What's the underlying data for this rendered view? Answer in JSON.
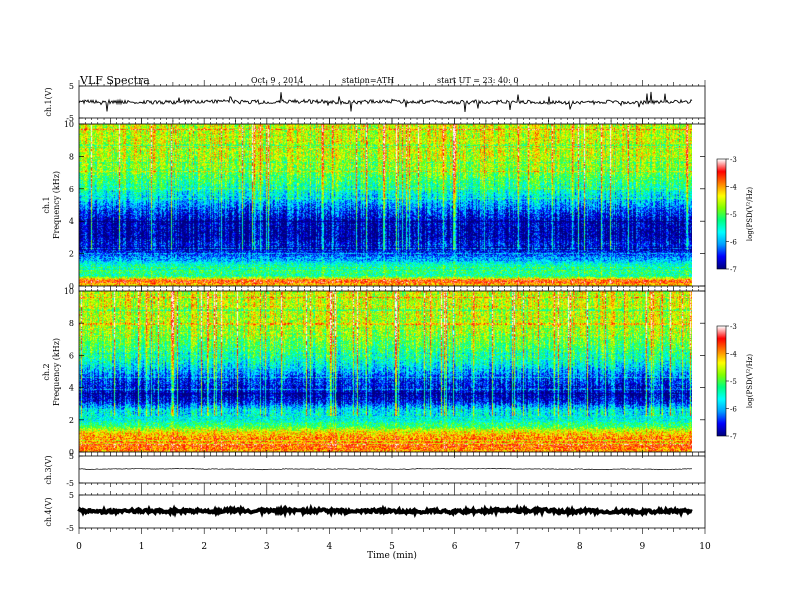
{
  "header": {
    "title": "VLF  Spectra",
    "date": "Oct. 9  , 2014",
    "station": "station=ATH",
    "start": "start  UT  =   23: 40: 0"
  },
  "x_axis": {
    "label": "Time  (min)",
    "ticks": [
      "0",
      "1",
      "2",
      "3",
      "4",
      "5",
      "6",
      "7",
      "8",
      "9",
      "10"
    ],
    "range": [
      0,
      10
    ],
    "data_end": 9.8
  },
  "panels": {
    "ch1_wave": {
      "ylabel": "ch.1(V)",
      "ticks": [
        "5",
        "-5"
      ],
      "ylim": [
        -5,
        5
      ]
    },
    "ch1_spec": {
      "ylabel_ch": "ch.1",
      "ylabel": "Frequency  (kHz)",
      "ticks": [
        "10",
        "8",
        "6",
        "4",
        "2",
        "0"
      ],
      "ylim": [
        0,
        10
      ]
    },
    "ch2_spec": {
      "ylabel_ch": "ch.2",
      "ylabel": "Frequency  (kHz)",
      "ticks": [
        "10",
        "8",
        "6",
        "4",
        "2",
        "0"
      ],
      "ylim": [
        0,
        10
      ]
    },
    "ch3_wave": {
      "ylabel": "ch.3(V)",
      "ticks": [
        "5",
        "-5"
      ],
      "ylim": [
        -5,
        5
      ]
    },
    "ch4_wave": {
      "ylabel": "ch.4(V)",
      "ticks": [
        "5",
        "-5"
      ],
      "ylim": [
        -5,
        5
      ]
    }
  },
  "colorbar": {
    "label": "log(PSD(V²/Hz)",
    "ticks": [
      "-3",
      "-4",
      "-5",
      "-6",
      "-7"
    ],
    "range": [
      -7,
      -3
    ],
    "colors": [
      "#000080",
      "#0000ff",
      "#00a0ff",
      "#00ffff",
      "#00ff80",
      "#80ff00",
      "#ffff00",
      "#ff8000",
      "#ff0000",
      "#ffffff"
    ]
  },
  "chart_data": [
    {
      "type": "line",
      "title": "",
      "xlabel": "",
      "ylabel": "ch.1(V)",
      "xlim": [
        0,
        10
      ],
      "ylim": [
        -5,
        5
      ],
      "series": [
        {
          "x_range": [
            0,
            9.8
          ],
          "mean_level": -0.3,
          "noise_amplitude": 0.6,
          "spike_amplitude": 3
        }
      ]
    },
    {
      "type": "heatmap",
      "title": "",
      "ylabel": "Frequency  (kHz)",
      "xlim": [
        0,
        10
      ],
      "ylim": [
        0,
        10
      ],
      "z_range": [
        -7,
        -3
      ],
      "frequency_profile_khz": [
        [
          0.0,
          -4.2
        ],
        [
          0.3,
          -3.6
        ],
        [
          0.6,
          -5.4
        ],
        [
          1.0,
          -5.0
        ],
        [
          1.6,
          -6.0
        ],
        [
          2.1,
          -6.6
        ],
        [
          2.6,
          -6.6
        ],
        [
          3.0,
          -6.9
        ],
        [
          4.0,
          -6.8
        ],
        [
          4.7,
          -6.3
        ],
        [
          5.5,
          -5.7
        ],
        [
          6.5,
          -5.1
        ],
        [
          7.5,
          -4.7
        ],
        [
          8.5,
          -4.5
        ],
        [
          10.0,
          -4.5
        ]
      ]
    },
    {
      "type": "heatmap",
      "title": "",
      "ylabel": "Frequency  (kHz)",
      "xlim": [
        0,
        10
      ],
      "ylim": [
        0,
        10
      ],
      "z_range": [
        -7,
        -3
      ],
      "frequency_profile_khz": [
        [
          0.0,
          -4.0
        ],
        [
          0.3,
          -3.8
        ],
        [
          0.8,
          -3.9
        ],
        [
          1.2,
          -4.3
        ],
        [
          1.6,
          -5.2
        ],
        [
          2.0,
          -5.6
        ],
        [
          2.6,
          -5.7
        ],
        [
          3.1,
          -6.6
        ],
        [
          3.5,
          -6.9
        ],
        [
          4.0,
          -6.6
        ],
        [
          4.6,
          -6.4
        ],
        [
          5.2,
          -5.8
        ],
        [
          6.0,
          -5.3
        ],
        [
          7.0,
          -4.9
        ],
        [
          8.0,
          -4.6
        ],
        [
          10.0,
          -4.5
        ]
      ]
    },
    {
      "type": "line",
      "title": "",
      "ylabel": "ch.3(V)",
      "xlim": [
        0,
        10
      ],
      "ylim": [
        -5,
        5
      ],
      "series": [
        {
          "x_range": [
            0,
            9.8
          ],
          "mean_level": 0.0,
          "noise_amplitude": 0.1,
          "spike_amplitude": 0
        }
      ]
    },
    {
      "type": "line",
      "title": "",
      "ylabel": "ch.4(V)",
      "xlim": [
        0,
        10
      ],
      "ylim": [
        -5,
        5
      ],
      "series": [
        {
          "x_range": [
            0,
            9.8
          ],
          "mean_level": 0.0,
          "noise_amplitude": 0.5,
          "spike_amplitude": 0
        }
      ]
    }
  ]
}
